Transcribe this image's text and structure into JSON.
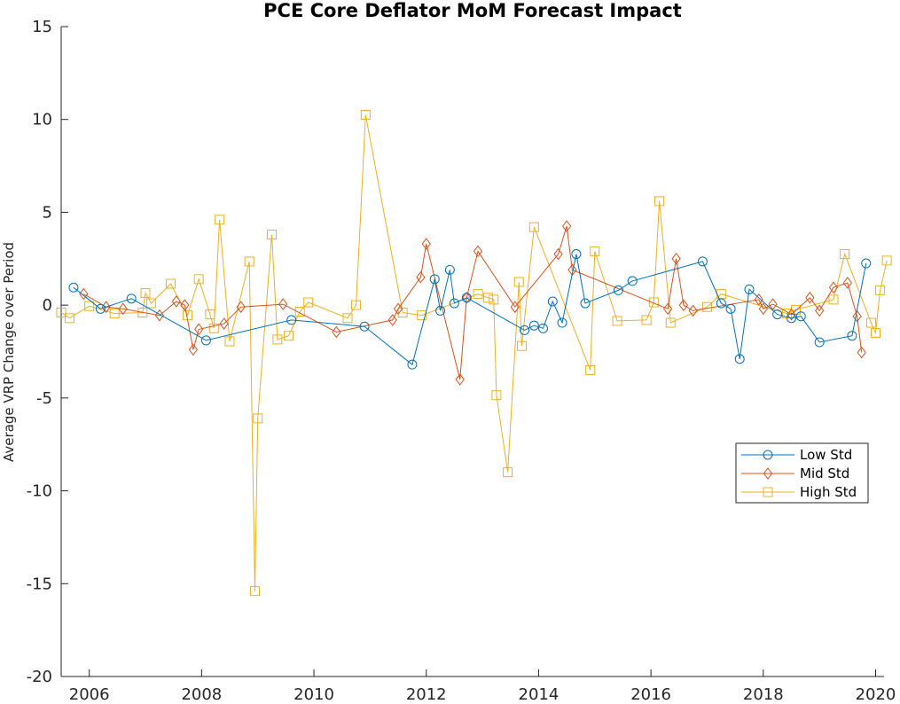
{
  "chart_data": {
    "type": "line",
    "title": "PCE Core Deflator MoM Forecast Impact",
    "xlabel": "",
    "ylabel": "Average VRP Change over Period",
    "xlim": [
      2005.5,
      2020.15
    ],
    "ylim": [
      -20,
      15
    ],
    "x_ticks": [
      2006,
      2008,
      2010,
      2012,
      2014,
      2016,
      2018,
      2020
    ],
    "y_ticks": [
      15,
      10,
      5,
      0,
      -5,
      -10,
      -15,
      -20
    ],
    "legend_position": "right",
    "series": [
      {
        "name": "Low Std",
        "color": "#0072BD",
        "marker": "circle",
        "points": [
          [
            2005.72,
            0.95
          ],
          [
            2006.2,
            -0.2
          ],
          [
            2006.75,
            0.35
          ],
          [
            2008.08,
            -1.9
          ],
          [
            2009.6,
            -0.8
          ],
          [
            2010.9,
            -1.15
          ],
          [
            2011.75,
            -3.2
          ],
          [
            2012.15,
            1.4
          ],
          [
            2012.25,
            -0.3
          ],
          [
            2012.42,
            1.9
          ],
          [
            2012.5,
            0.1
          ],
          [
            2012.72,
            0.4
          ],
          [
            2013.75,
            -1.35
          ],
          [
            2013.92,
            -1.1
          ],
          [
            2014.08,
            -1.25
          ],
          [
            2014.25,
            0.2
          ],
          [
            2014.42,
            -0.95
          ],
          [
            2014.67,
            2.75
          ],
          [
            2014.83,
            0.1
          ],
          [
            2015.42,
            0.8
          ],
          [
            2015.67,
            1.3
          ],
          [
            2016.92,
            2.35
          ],
          [
            2017.25,
            0.1
          ],
          [
            2017.42,
            -0.2
          ],
          [
            2017.58,
            -2.9
          ],
          [
            2017.75,
            0.85
          ],
          [
            2018.25,
            -0.5
          ],
          [
            2018.5,
            -0.7
          ],
          [
            2018.67,
            -0.6
          ],
          [
            2019.0,
            -2.0
          ],
          [
            2019.58,
            -1.65
          ],
          [
            2019.83,
            2.25
          ]
        ]
      },
      {
        "name": "Mid Std",
        "color": "#D95319",
        "marker": "diamond",
        "points": [
          [
            2005.9,
            0.6
          ],
          [
            2006.3,
            -0.1
          ],
          [
            2006.6,
            -0.2
          ],
          [
            2007.25,
            -0.55
          ],
          [
            2007.55,
            0.2
          ],
          [
            2007.7,
            0.0
          ],
          [
            2007.85,
            -2.4
          ],
          [
            2007.95,
            -1.3
          ],
          [
            2008.4,
            -1.0
          ],
          [
            2008.7,
            -0.1
          ],
          [
            2009.45,
            0.05
          ],
          [
            2010.4,
            -1.45
          ],
          [
            2011.4,
            -0.8
          ],
          [
            2011.5,
            -0.2
          ],
          [
            2011.9,
            1.5
          ],
          [
            2012.0,
            3.3
          ],
          [
            2012.6,
            -4.0
          ],
          [
            2012.72,
            0.4
          ],
          [
            2012.92,
            2.9
          ],
          [
            2013.58,
            -0.1
          ],
          [
            2014.35,
            2.75
          ],
          [
            2014.5,
            4.25
          ],
          [
            2014.6,
            1.9
          ],
          [
            2016.3,
            -0.2
          ],
          [
            2016.45,
            2.5
          ],
          [
            2016.58,
            0.0
          ],
          [
            2016.75,
            -0.3
          ],
          [
            2017.92,
            0.3
          ],
          [
            2018.0,
            -0.2
          ],
          [
            2018.17,
            0.05
          ],
          [
            2018.5,
            -0.5
          ],
          [
            2018.83,
            0.4
          ],
          [
            2019.0,
            -0.3
          ],
          [
            2019.25,
            0.95
          ],
          [
            2019.5,
            1.2
          ],
          [
            2019.67,
            -0.6
          ],
          [
            2019.75,
            -2.55
          ]
        ]
      },
      {
        "name": "High Std",
        "color": "#EDB120",
        "marker": "square",
        "points": [
          [
            2005.5,
            -0.4
          ],
          [
            2005.65,
            -0.7
          ],
          [
            2006.0,
            -0.05
          ],
          [
            2006.45,
            -0.45
          ],
          [
            2006.95,
            -0.4
          ],
          [
            2007.0,
            0.65
          ],
          [
            2007.1,
            0.1
          ],
          [
            2007.45,
            1.15
          ],
          [
            2007.75,
            -0.55
          ],
          [
            2007.95,
            1.4
          ],
          [
            2008.15,
            -0.5
          ],
          [
            2008.22,
            -1.25
          ],
          [
            2008.32,
            4.6
          ],
          [
            2008.5,
            -1.95
          ],
          [
            2008.85,
            2.35
          ],
          [
            2008.95,
            -15.4
          ],
          [
            2009.0,
            -6.1
          ],
          [
            2009.25,
            3.8
          ],
          [
            2009.35,
            -1.85
          ],
          [
            2009.55,
            -1.65
          ],
          [
            2009.75,
            -0.35
          ],
          [
            2009.9,
            0.15
          ],
          [
            2010.6,
            -0.7
          ],
          [
            2010.75,
            0.0
          ],
          [
            2010.92,
            10.25
          ],
          [
            2011.58,
            -0.4
          ],
          [
            2011.92,
            -0.55
          ],
          [
            2012.92,
            0.6
          ],
          [
            2013.1,
            0.4
          ],
          [
            2013.2,
            0.3
          ],
          [
            2013.25,
            -4.85
          ],
          [
            2013.45,
            -9.0
          ],
          [
            2013.65,
            1.25
          ],
          [
            2013.7,
            -2.2
          ],
          [
            2013.92,
            4.2
          ],
          [
            2014.92,
            -3.5
          ],
          [
            2015.0,
            2.9
          ],
          [
            2015.4,
            -0.85
          ],
          [
            2015.92,
            -0.8
          ],
          [
            2016.05,
            0.15
          ],
          [
            2016.15,
            5.6
          ],
          [
            2016.35,
            -0.95
          ],
          [
            2017.0,
            -0.1
          ],
          [
            2017.25,
            0.6
          ],
          [
            2018.42,
            -0.45
          ],
          [
            2018.58,
            -0.25
          ],
          [
            2019.25,
            0.3
          ],
          [
            2019.45,
            2.75
          ],
          [
            2019.92,
            -0.95
          ],
          [
            2020.0,
            -1.5
          ],
          [
            2020.08,
            0.8
          ],
          [
            2020.2,
            2.4
          ]
        ]
      }
    ]
  }
}
